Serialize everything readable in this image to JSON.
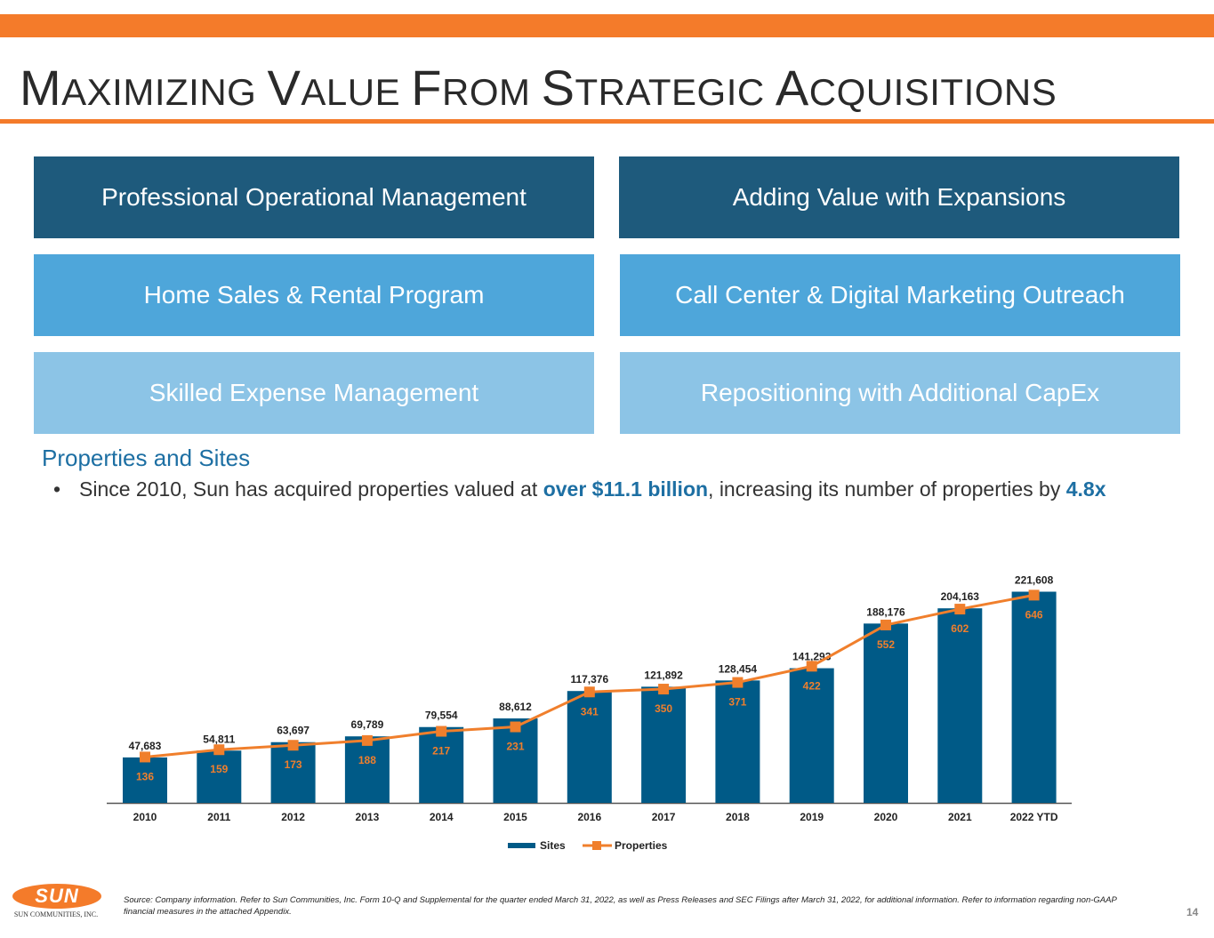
{
  "header": {
    "title_parts": [
      {
        "cap": "M",
        "rest": "AXIMIZING "
      },
      {
        "cap": "V",
        "rest": "ALUE "
      },
      {
        "cap": "F",
        "rest": "ROM "
      },
      {
        "cap": "S",
        "rest": "TRATEGIC "
      },
      {
        "cap": "A",
        "rest": "CQUISITIONS"
      }
    ]
  },
  "boxes": {
    "professional_operational_management": "Professional Operational Management",
    "adding_value_with_expansions": "Adding Value with Expansions",
    "home_sales_rental_program": "Home Sales & Rental Program",
    "call_center_digital_marketing": "Call Center & Digital Marketing Outreach",
    "skilled_expense_management": "Skilled Expense Management",
    "repositioning_additional_capex": "Repositioning with Additional CapEx"
  },
  "section": {
    "heading": "Properties and Sites",
    "bullet_char": "•",
    "bullet_part1": "Since 2010, Sun has acquired properties valued at ",
    "bullet_highlight1": "over $11.1 billion",
    "bullet_part2": ", increasing its number of properties by ",
    "bullet_highlight2": "4.8x"
  },
  "chart_data": {
    "type": "bar",
    "title": "",
    "xlabel": "",
    "ylabel": "",
    "categories": [
      "2010",
      "2011",
      "2012",
      "2013",
      "2014",
      "2015",
      "2016",
      "2017",
      "2018",
      "2019",
      "2020",
      "2021",
      "2022 YTD"
    ],
    "series": [
      {
        "name": "Sites",
        "kind": "bar",
        "color": "#005A87",
        "values": [
          47683,
          54811,
          63697,
          69789,
          79554,
          88612,
          117376,
          121892,
          128454,
          141293,
          188176,
          204163,
          221608
        ],
        "labels": [
          "47,683",
          "54,811",
          "63,697",
          "69,789",
          "79,554",
          "88,612",
          "117,376",
          "121,892",
          "128,454",
          "141,293",
          "188,176",
          "204,163",
          "221,608"
        ]
      },
      {
        "name": "Properties",
        "kind": "line",
        "color": "#F07F2C",
        "values": [
          136,
          159,
          173,
          188,
          217,
          231,
          341,
          350,
          371,
          422,
          552,
          602,
          646
        ]
      }
    ],
    "legend_position": "bottom",
    "grid": false
  },
  "footer": {
    "logo_text": "SUN",
    "logo_subtext": "SUN COMMUNITIES, INC.",
    "source": "Source: Company information. Refer to Sun Communities, Inc. Form 10-Q and Supplemental for the quarter ended March 31, 2022, as well as Press Releases and SEC Filings after March 31, 2022, for additional information.  Refer to information regarding non-GAAP financial measures in the attached Appendix.",
    "page_number": "14"
  }
}
